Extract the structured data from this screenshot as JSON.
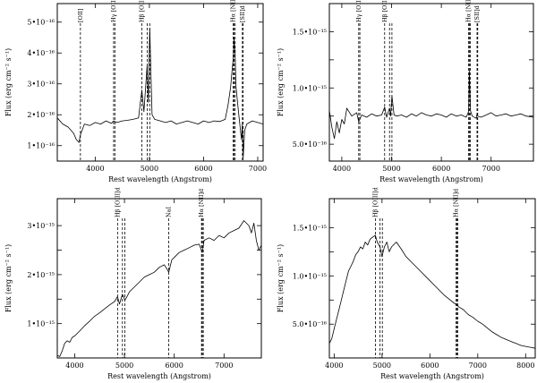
{
  "chart_data": [
    {
      "type": "line",
      "xlabel": "Rest wavelength (Angstrom)",
      "ylabel": "Flux (erg cm⁻² s⁻¹)",
      "xlim": [
        3300,
        7100
      ],
      "ylim": [
        5e-17,
        5.6e-16
      ],
      "xticks": [
        4000,
        5000,
        6000,
        7000
      ],
      "xticklabels": [
        "4000",
        "5000",
        "6000",
        "7000"
      ],
      "yticks": [
        1e-16,
        2e-16,
        3e-16,
        4e-16,
        5e-16
      ],
      "yticklabels": [
        "1•10⁻¹⁶",
        "2•10⁻¹⁶",
        "3•10⁻¹⁶",
        "4•10⁻¹⁶",
        "5•10⁻¹⁶"
      ],
      "lines": [
        {
          "label": "[OII]",
          "x": [
            3727
          ]
        },
        {
          "label": "Hγ [OIII]",
          "x": [
            4340,
            4363
          ]
        },
        {
          "label": "Hβ [OIII]d",
          "x": [
            4861,
            4959,
            5007
          ]
        },
        {
          "label": "Hα [NII]d",
          "x": [
            6548,
            6563,
            6584
          ]
        },
        {
          "label": "[SII]d",
          "x": [
            6717,
            6731
          ]
        }
      ],
      "x": [
        3300,
        3400,
        3500,
        3600,
        3650,
        3700,
        3727,
        3760,
        3800,
        3900,
        4000,
        4100,
        4200,
        4300,
        4340,
        4400,
        4500,
        4600,
        4700,
        4800,
        4861,
        4900,
        4959,
        4980,
        5007,
        5050,
        5100,
        5200,
        5300,
        5400,
        5500,
        5600,
        5700,
        5800,
        5900,
        6000,
        6100,
        6200,
        6300,
        6400,
        6450,
        6500,
        6530,
        6548,
        6563,
        6584,
        6600,
        6650,
        6700,
        6717,
        6731,
        6760,
        6800,
        6900,
        7000,
        7100
      ],
      "y": [
        1.9e-16,
        1.7e-16,
        1.6e-16,
        1.4e-16,
        1.2e-16,
        1.1e-16,
        1.35e-16,
        1.5e-16,
        1.7e-16,
        1.65e-16,
        1.75e-16,
        1.7e-16,
        1.8e-16,
        1.72e-16,
        1.8e-16,
        1.75e-16,
        1.8e-16,
        1.82e-16,
        1.85e-16,
        1.9e-16,
        2.8e-16,
        2.1e-16,
        3.6e-16,
        2.4e-16,
        4.8e-16,
        2e-16,
        1.85e-16,
        1.8e-16,
        1.75e-16,
        1.8e-16,
        1.7e-16,
        1.75e-16,
        1.8e-16,
        1.75e-16,
        1.7e-16,
        1.8e-16,
        1.75e-16,
        1.8e-16,
        1.78e-16,
        1.85e-16,
        2.3e-16,
        2.9e-16,
        3.5e-16,
        3.8e-16,
        4.5e-16,
        3.8e-16,
        2.9e-16,
        2e-16,
        1.2e-16,
        1.7e-16,
        6e-17,
        1.5e-16,
        1.7e-16,
        1.8e-16,
        1.75e-16,
        1.7e-16
      ]
    },
    {
      "type": "line",
      "xlabel": "Rest wavelength (Angstrom)",
      "ylabel": "Flux (erg cm⁻² s⁻¹)",
      "xlim": [
        3750,
        7850
      ],
      "ylim": [
        3.5e-16,
        1.75e-15
      ],
      "xticks": [
        4000,
        5000,
        6000,
        7000
      ],
      "xticklabels": [
        "4000",
        "5000",
        "6000",
        "7000"
      ],
      "yticks": [
        5e-16,
        7.5e-16,
        1e-15,
        1.25e-15,
        1.5e-15
      ],
      "yticklabels": [
        "5.0•10⁻¹⁶",
        "",
        "1.0•10⁻¹⁵",
        "",
        "1.5•10⁻¹⁵"
      ],
      "lines": [
        {
          "label": "Hγ [OIII]",
          "x": [
            4340,
            4363
          ]
        },
        {
          "label": "Hβ [OIII]d",
          "x": [
            4861,
            4959,
            5007
          ]
        },
        {
          "label": "Hα [NII]d",
          "x": [
            6548,
            6563,
            6584
          ]
        },
        {
          "label": "[SII]d",
          "x": [
            6717,
            6731
          ]
        }
      ],
      "x": [
        3750,
        3800,
        3850,
        3900,
        3950,
        4000,
        4050,
        4100,
        4200,
        4300,
        4340,
        4400,
        4500,
        4600,
        4700,
        4800,
        4861,
        4900,
        4959,
        4980,
        5007,
        5050,
        5100,
        5200,
        5300,
        5400,
        5500,
        5600,
        5700,
        5800,
        5900,
        6000,
        6100,
        6200,
        6300,
        6400,
        6500,
        6548,
        6563,
        6584,
        6620,
        6700,
        6717,
        6731,
        6800,
        6900,
        7000,
        7100,
        7200,
        7300,
        7400,
        7500,
        7600,
        7700,
        7850
      ],
      "y": [
        8e-16,
        6.5e-16,
        5.5e-16,
        7e-16,
        6e-16,
        7.2e-16,
        6.8e-16,
        8.2e-16,
        7.5e-16,
        7.8e-16,
        7e-16,
        7.6e-16,
        7.4e-16,
        7.7e-16,
        7.5e-16,
        7.6e-16,
        8.3e-16,
        7.4e-16,
        8.2e-16,
        7.5e-16,
        9.3e-16,
        7.6e-16,
        7.5e-16,
        7.6e-16,
        7.4e-16,
        7.7e-16,
        7.5e-16,
        7.8e-16,
        7.6e-16,
        7.5e-16,
        7.7e-16,
        7.6e-16,
        7.4e-16,
        7.7e-16,
        7.5e-16,
        7.6e-16,
        7.4e-16,
        7.9e-16,
        1.15e-15,
        8e-16,
        7.5e-16,
        7.3e-16,
        7.7e-16,
        7.5e-16,
        7.4e-16,
        7.6e-16,
        7.8e-16,
        7.5e-16,
        7.6e-16,
        7.7e-16,
        7.5e-16,
        7.6e-16,
        7.7e-16,
        7.5e-16,
        7.4e-16
      ]
    },
    {
      "type": "line",
      "xlabel": "Rest wavelength (Angstrom)",
      "ylabel": "Flux (erg cm⁻² s⁻¹)",
      "xlim": [
        3650,
        7750
      ],
      "ylim": [
        3e-16,
        3.55e-15
      ],
      "xticks": [
        4000,
        5000,
        6000,
        7000
      ],
      "xticklabels": [
        "4000",
        "5000",
        "6000",
        "7000"
      ],
      "yticks": [
        1e-15,
        1.5e-15,
        2e-15,
        2.5e-15,
        3e-15
      ],
      "yticklabels": [
        "1•10⁻¹⁵",
        "",
        "2•10⁻¹⁵",
        "",
        "3•10⁻¹⁵"
      ],
      "lines": [
        {
          "label": "Hβ [OIII]d",
          "x": [
            4861,
            4959,
            5007
          ]
        },
        {
          "label": "NaI",
          "x": [
            5890
          ]
        },
        {
          "label": "Hα [NII]d",
          "x": [
            6548,
            6563,
            6584
          ]
        }
      ],
      "x": [
        3650,
        3700,
        3750,
        3800,
        3850,
        3900,
        3950,
        4000,
        4100,
        4200,
        4300,
        4400,
        4500,
        4600,
        4700,
        4800,
        4861,
        4900,
        4959,
        5007,
        5050,
        5100,
        5200,
        5300,
        5400,
        5500,
        5600,
        5700,
        5800,
        5890,
        5950,
        6000,
        6100,
        6200,
        6300,
        6400,
        6500,
        6563,
        6600,
        6700,
        6800,
        6900,
        7000,
        7100,
        7200,
        7300,
        7400,
        7500,
        7550,
        7600,
        7650,
        7700,
        7750
      ],
      "y": [
        3.5e-16,
        3.3e-16,
        4.5e-16,
        6e-16,
        6.5e-16,
        6.2e-16,
        7.2e-16,
        7.5e-16,
        8.5e-16,
        9.6e-16,
        1.05e-15,
        1.15e-15,
        1.22e-15,
        1.3e-15,
        1.38e-15,
        1.45e-15,
        1.55e-15,
        1.4e-15,
        1.6e-15,
        1.48e-15,
        1.55e-15,
        1.65e-15,
        1.75e-15,
        1.85e-15,
        1.95e-15,
        2e-15,
        2.05e-15,
        2.15e-15,
        2.2e-15,
        2.05e-15,
        2.3e-15,
        2.35e-15,
        2.45e-15,
        2.5e-15,
        2.55e-15,
        2.6e-15,
        2.62e-15,
        2.45e-15,
        2.7e-15,
        2.75e-15,
        2.7e-15,
        2.8e-15,
        2.75e-15,
        2.85e-15,
        2.9e-15,
        2.95e-15,
        3.1e-15,
        3e-15,
        2.85e-15,
        3.05e-15,
        2.7e-15,
        2.5e-15,
        2.6e-15
      ]
    },
    {
      "type": "line",
      "xlabel": "Rest wavelength (Angstrom)",
      "ylabel": "Flux (erg cm⁻² s⁻¹)",
      "xlim": [
        3900,
        8200
      ],
      "ylim": [
        1.5e-16,
        1.8e-15
      ],
      "xticks": [
        4000,
        5000,
        6000,
        7000,
        8000
      ],
      "xticklabels": [
        "4000",
        "5000",
        "6000",
        "7000",
        "8000"
      ],
      "yticks": [
        5e-16,
        7.5e-16,
        1e-15,
        1.25e-15,
        1.5e-15
      ],
      "yticklabels": [
        "5.0•10⁻¹⁶",
        "",
        "1.0•10⁻¹⁵",
        "",
        "1.5•10⁻¹⁵"
      ],
      "lines": [
        {
          "label": "Hβ [OIII]d",
          "x": [
            4861,
            4959,
            5007
          ]
        },
        {
          "label": "Hα [NII]d",
          "x": [
            6548,
            6563,
            6584
          ]
        }
      ],
      "x": [
        3900,
        3950,
        4000,
        4050,
        4100,
        4150,
        4200,
        4250,
        4300,
        4350,
        4400,
        4450,
        4500,
        4550,
        4600,
        4650,
        4700,
        4750,
        4800,
        4861,
        4900,
        4959,
        5000,
        5050,
        5100,
        5150,
        5200,
        5300,
        5400,
        5500,
        5600,
        5700,
        5800,
        5900,
        6000,
        6100,
        6200,
        6300,
        6400,
        6500,
        6563,
        6600,
        6700,
        6800,
        6900,
        7000,
        7100,
        7200,
        7300,
        7400,
        7500,
        7600,
        7700,
        7800,
        7900,
        8000,
        8100,
        8200
      ],
      "y": [
        3e-16,
        3.5e-16,
        4.5e-16,
        5.5e-16,
        6.5e-16,
        7.5e-16,
        8.5e-16,
        9.5e-16,
        1.05e-15,
        1.1e-15,
        1.15e-15,
        1.22e-15,
        1.25e-15,
        1.3e-15,
        1.28e-15,
        1.35e-15,
        1.32e-15,
        1.38e-15,
        1.4e-15,
        1.42e-15,
        1.35e-15,
        1.3e-15,
        1.2e-15,
        1.3e-15,
        1.35e-15,
        1.25e-15,
        1.3e-15,
        1.35e-15,
        1.28e-15,
        1.2e-15,
        1.15e-15,
        1.1e-15,
        1.05e-15,
        1e-15,
        9.5e-16,
        9e-16,
        8.5e-16,
        8e-16,
        7.6e-16,
        7.2e-16,
        7e-16,
        6.8e-16,
        6.5e-16,
        6e-16,
        5.7e-16,
        5.3e-16,
        5e-16,
        4.6e-16,
        4.2e-16,
        3.9e-16,
        3.6e-16,
        3.4e-16,
        3.2e-16,
        3e-16,
        2.8e-16,
        2.7e-16,
        2.6e-16,
        2.5e-16
      ]
    }
  ]
}
